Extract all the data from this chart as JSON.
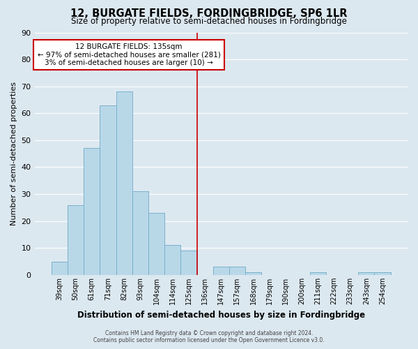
{
  "title": "12, BURGATE FIELDS, FORDINGBRIDGE, SP6 1LR",
  "subtitle": "Size of property relative to semi-detached houses in Fordingbridge",
  "xlabel": "Distribution of semi-detached houses by size in Fordingbridge",
  "ylabel": "Number of semi-detached properties",
  "bar_labels": [
    "39sqm",
    "50sqm",
    "61sqm",
    "71sqm",
    "82sqm",
    "93sqm",
    "104sqm",
    "114sqm",
    "125sqm",
    "136sqm",
    "147sqm",
    "157sqm",
    "168sqm",
    "179sqm",
    "190sqm",
    "200sqm",
    "211sqm",
    "222sqm",
    "233sqm",
    "243sqm",
    "254sqm"
  ],
  "bar_heights": [
    5,
    26,
    47,
    63,
    68,
    31,
    23,
    11,
    9,
    0,
    3,
    3,
    1,
    0,
    0,
    0,
    1,
    0,
    0,
    1,
    1
  ],
  "highlight_index": 9,
  "bar_color": "#b8d8e8",
  "bar_edge_color": "#7ab0cc",
  "highlight_line_color": "#cc0000",
  "background_color": "#dce8f0",
  "grid_color": "#ffffff",
  "annotation_box_text_line1": "12 BURGATE FIELDS: 135sqm",
  "annotation_box_text_line2": "← 97% of semi-detached houses are smaller (281)",
  "annotation_box_text_line3": "3% of semi-detached houses are larger (10) →",
  "ylim": [
    0,
    90
  ],
  "yticks": [
    0,
    10,
    20,
    30,
    40,
    50,
    60,
    70,
    80,
    90
  ],
  "footer_line1": "Contains HM Land Registry data © Crown copyright and database right 2024.",
  "footer_line2": "Contains public sector information licensed under the Open Government Licence v3.0."
}
